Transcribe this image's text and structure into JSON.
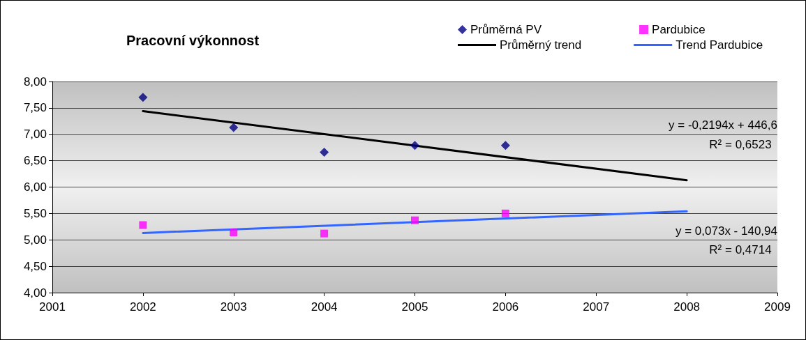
{
  "chart_data": {
    "type": "scatter",
    "title": "Pracovní výkonnost",
    "xlim": [
      2001,
      2009
    ],
    "xticks": [
      2001,
      2002,
      2003,
      2004,
      2005,
      2006,
      2007,
      2008,
      2009
    ],
    "ylim": [
      4,
      8
    ],
    "yticks": [
      {
        "value": 4,
        "label": "4,00"
      },
      {
        "value": 4.5,
        "label": "4,50"
      },
      {
        "value": 5,
        "label": "5,00"
      },
      {
        "value": 5.5,
        "label": "5,50"
      },
      {
        "value": 6,
        "label": "6,00"
      },
      {
        "value": 6.5,
        "label": "6,50"
      },
      {
        "value": 7,
        "label": "7,00"
      },
      {
        "value": 7.5,
        "label": "7,50"
      },
      {
        "value": 8,
        "label": "8,00"
      }
    ],
    "grid": "y",
    "legend": "top right",
    "series": [
      {
        "name": "Průměrná PV",
        "marker": "diamond",
        "color": "#000080",
        "x": [
          2002,
          2003,
          2004,
          2005,
          2006
        ],
        "values": [
          7.7,
          7.13,
          6.66,
          6.79,
          6.79
        ]
      },
      {
        "name": "Pardubice",
        "marker": "square",
        "color": "#ff00ff",
        "x": [
          2002,
          2003,
          2004,
          2005,
          2006
        ],
        "values": [
          5.28,
          5.14,
          5.12,
          5.37,
          5.5
        ]
      },
      {
        "name": "Průměrný trend",
        "type": "line",
        "marker": "none",
        "color": "#000000",
        "x": [
          2002,
          2008
        ],
        "values": [
          7.44,
          6.13
        ]
      },
      {
        "name": "Trend Pardubice",
        "type": "line",
        "marker": "none",
        "color": "#3366ff",
        "x": [
          2002,
          2008
        ],
        "values": [
          5.13,
          5.54
        ]
      }
    ],
    "annotations": [
      "y = -0,2194x + 446,6",
      "R² = 0,6523",
      "y = 0,073x - 140,94",
      "R² = 0,4714"
    ]
  }
}
